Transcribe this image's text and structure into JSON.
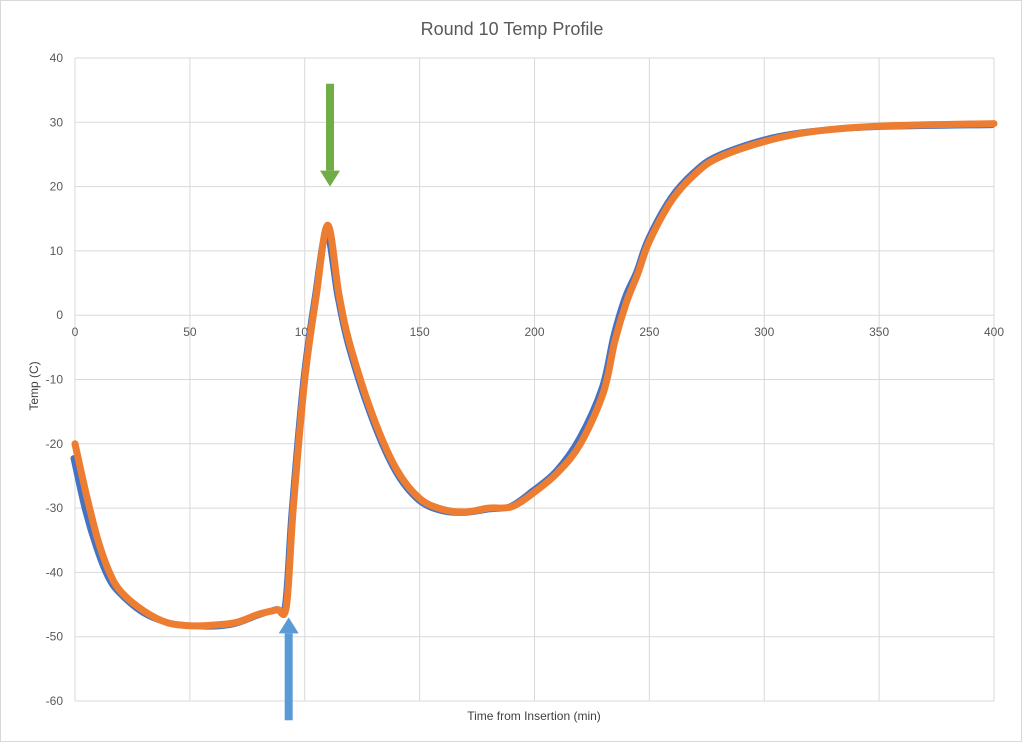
{
  "chart_data": {
    "type": "line",
    "title": "Round 10 Temp Profile",
    "xlabel": "Time from Insertion (min)",
    "ylabel": "Temp (C)",
    "xlim": [
      0,
      400
    ],
    "ylim": [
      -60,
      40
    ],
    "x_ticks": [
      "0",
      "50",
      "100",
      "150",
      "200",
      "250",
      "300",
      "350",
      "400"
    ],
    "y_ticks": [
      "40",
      "30",
      "20",
      "10",
      "0",
      "-10",
      "-20",
      "-30",
      "-40",
      "-50",
      "-60"
    ],
    "grid": true,
    "legend": "none",
    "series": [
      {
        "color": "#4472c4",
        "x": [
          0,
          5,
          10,
          15,
          20,
          30,
          40,
          50,
          60,
          70,
          80,
          88,
          92,
          95,
          100,
          105,
          110,
          115,
          120,
          130,
          140,
          150,
          160,
          170,
          180,
          190,
          200,
          210,
          220,
          230,
          235,
          240,
          245,
          250,
          260,
          270,
          280,
          300,
          320,
          350,
          400
        ],
        "y": [
          -22,
          -30,
          -36,
          -40.5,
          -43,
          -46,
          -47.5,
          -48,
          -48.2,
          -47.8,
          -46.5,
          -45.5,
          -45,
          -30,
          -10,
          3,
          13,
          3,
          -5,
          -16,
          -24,
          -28.5,
          -30.2,
          -30.5,
          -30,
          -29.5,
          -27,
          -24,
          -19,
          -11,
          -3,
          3,
          7,
          12,
          18.5,
          22.5,
          25,
          27.5,
          28.8,
          29.5,
          29.8
        ]
      },
      {
        "color": "#ed7d31",
        "x": [
          0,
          5,
          10,
          15,
          20,
          30,
          40,
          50,
          60,
          70,
          80,
          88,
          92,
          95,
          100,
          105,
          110,
          115,
          120,
          130,
          140,
          150,
          160,
          170,
          180,
          190,
          200,
          210,
          220,
          230,
          235,
          240,
          245,
          250,
          260,
          270,
          280,
          300,
          320,
          350,
          400
        ],
        "y": [
          -20,
          -28,
          -35,
          -40,
          -43,
          -46,
          -47.8,
          -48.3,
          -48.2,
          -47.8,
          -46.5,
          -45.8,
          -45.3,
          -30,
          -10,
          3,
          14,
          3,
          -5,
          -16,
          -24,
          -28.5,
          -30.2,
          -30.6,
          -30,
          -29.8,
          -27.5,
          -24.5,
          -20,
          -12,
          -4,
          2,
          6.5,
          11.5,
          18,
          22,
          24.5,
          27,
          28.5,
          29.4,
          29.8
        ]
      }
    ],
    "annotations": [
      {
        "type": "arrow",
        "direction": "down",
        "color": "#70ad47",
        "x": 111,
        "y_from": 36,
        "y_to": 20
      },
      {
        "type": "arrow",
        "direction": "up",
        "color": "#5b9bd5",
        "x": 93,
        "y_from": -63,
        "y_to": -47
      }
    ]
  }
}
